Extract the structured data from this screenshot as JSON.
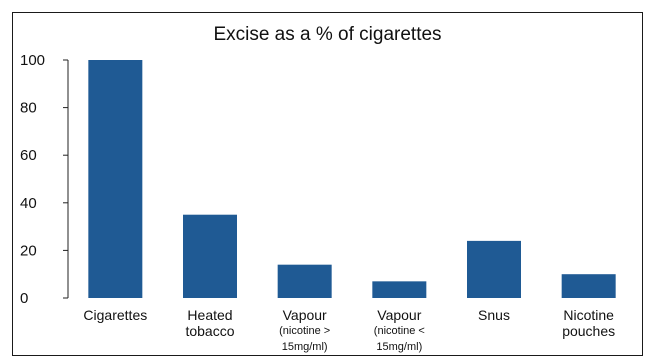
{
  "chart_data": {
    "type": "bar",
    "title": "Excise as a % of cigarettes",
    "xlabel": "",
    "ylabel": "",
    "ylim": [
      0,
      100
    ],
    "yticks": [
      "0",
      "20",
      "40",
      "60",
      "80",
      "100"
    ],
    "grid": false,
    "legend": "none",
    "bar_color": "#1f5a94",
    "categories": [
      [
        "Cigarettes"
      ],
      [
        "Heated",
        "tobacco"
      ],
      [
        "Vapour",
        "(nicotine >",
        "15mg/ml)"
      ],
      [
        "Vapour",
        "(nicotine <",
        "15mg/ml)"
      ],
      [
        "Snus"
      ],
      [
        "Nicotine",
        "pouches"
      ]
    ],
    "values": [
      100,
      35,
      14,
      7,
      24,
      10
    ]
  }
}
